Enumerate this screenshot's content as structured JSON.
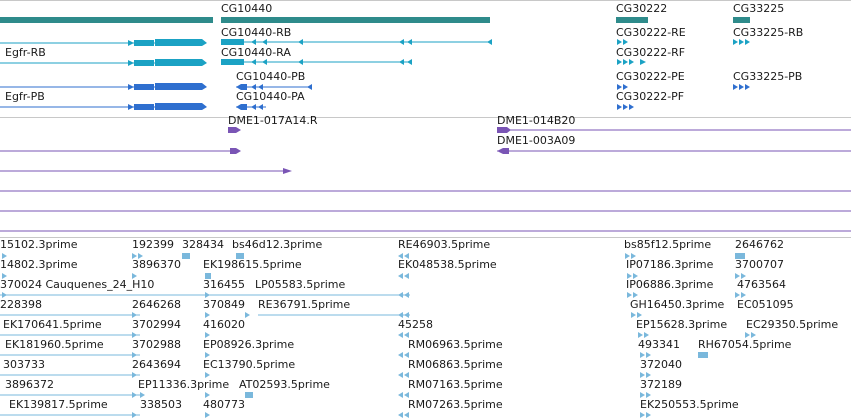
{
  "colors": {
    "gene": "#2e8b8b",
    "transcript_rb": "#1ba2c4",
    "transcript_pb": "#2f6fcf",
    "clone": "#7a55b5",
    "est": "#7ab8dc",
    "separator": "#c8c8c8"
  },
  "genes": {
    "cg10440": "CG10440",
    "cg30222": "CG30222",
    "cg33225": "CG33225"
  },
  "transcripts": {
    "cg10440_rb": "CG10440-RB",
    "cg10440_ra": "CG10440-RA",
    "cg30222_re": "CG30222-RE",
    "cg30222_rf": "CG30222-RF",
    "cg33225_rb": "CG33225-RB",
    "egfr_rb": "Egfr-RB"
  },
  "proteins": {
    "cg10440_pb": "CG10440-PB",
    "cg10440_pa": "CG10440-PA",
    "cg30222_pe": "CG30222-PE",
    "cg30222_pf": "CG30222-PF",
    "cg33225_pb": "CG33225-PB",
    "egfr_pb": "Egfr-PB"
  },
  "clones": {
    "dme1_017a14": "DME1-017A14.R",
    "dme1_014b20": "DME1-014B20",
    "dme1_003a09": "DME1-003A09"
  },
  "ests": [
    "15102.3prime",
    "192399",
    "328434",
    "bs46d12.3prime",
    "RE46903.5prime",
    "bs85f12.5prime",
    "2646762",
    "14802.3prime",
    "3896370",
    "EK198615.5prime",
    "EK048538.5prime",
    "IP07186.3prime",
    "3700707",
    "370024 Cauquenes_24_H10",
    "316455",
    "LP05583.5prime",
    "IP06886.3prime",
    "4763564",
    "228398",
    "2646268",
    "370849",
    "RE36791.5prime",
    "GH16450.3prime",
    "EC051095",
    "EK170641.5prime",
    "3702994",
    "416020",
    "45258",
    "EP15628.3prime",
    "EC29350.5prime",
    "EK181960.5prime",
    "3702988",
    "EP08926.3prime",
    "RM06963.5prime",
    "493341",
    "RH67054.5prime",
    "303733",
    "2643694",
    "EC13790.5prime",
    "RM06863.5prime",
    "372040",
    "3896372",
    "EP11336.3prime",
    "AT02593.5prime",
    "RM07163.5prime",
    "372189",
    "EK139817.5prime",
    "338503",
    "480773",
    "RM07263.5prime",
    "EK250553.5prime"
  ]
}
